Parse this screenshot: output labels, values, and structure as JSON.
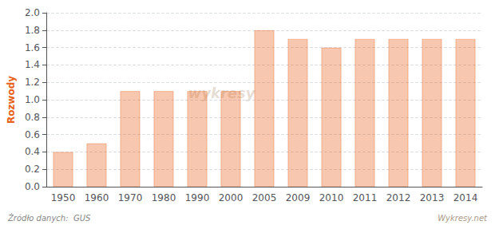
{
  "chart_data": {
    "type": "bar",
    "ylabel": "Rozwody",
    "categories": [
      "1950",
      "1960",
      "1970",
      "1980",
      "1990",
      "2000",
      "2005",
      "2009",
      "2010",
      "2011",
      "2012",
      "2013",
      "2014"
    ],
    "values": [
      0.4,
      0.5,
      1.1,
      1.1,
      1.1,
      1.1,
      1.8,
      1.7,
      1.6,
      1.7,
      1.7,
      1.7,
      1.7
    ],
    "color": "#E8621A",
    "ylim": [
      0,
      2.0
    ],
    "yticks": [
      {
        "value": 0.0,
        "label": "0.0"
      },
      0.2,
      0.4,
      0.6,
      0.8,
      {
        "value": 1.0,
        "label": "1.0"
      },
      1.2,
      1.4,
      1.6,
      1.8,
      {
        "value": 2.0,
        "label": "2.0"
      }
    ],
    "grid": true,
    "annotations": [
      "wykresy",
      "Źródło danych:  GUS",
      "Wykresy.net"
    ]
  }
}
